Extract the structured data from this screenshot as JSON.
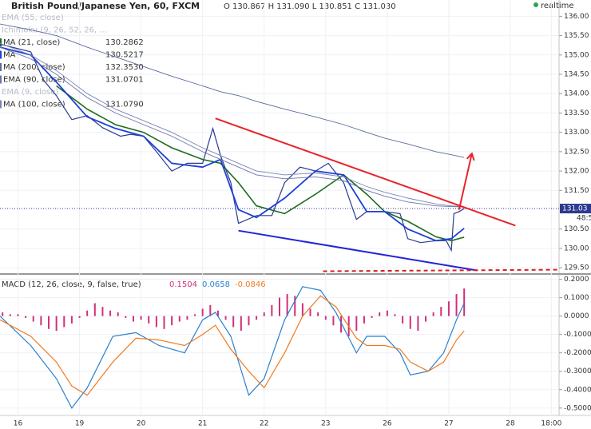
{
  "chart_data": [
    {
      "type": "line",
      "title": "British Pound/Japanese Yen, 60, FXCM",
      "ohlc": "O 130.867 H 131.090 L 130.851 C 131.030",
      "status": "realtime",
      "hidden_indicators": [
        "EMA (55, close)",
        "Ichimoku (9, 26, 52, 26, ..."
      ],
      "hidden_indicators_lower": [
        "EMA (9, close)"
      ],
      "xlim": [
        0,
        218
      ],
      "xticks": [
        {
          "value": 7,
          "label": "16"
        },
        {
          "value": 31,
          "label": "19"
        },
        {
          "value": 55,
          "label": "20"
        },
        {
          "value": 79,
          "label": "21"
        },
        {
          "value": 103,
          "label": "22"
        },
        {
          "value": 127,
          "label": "23"
        },
        {
          "value": 151,
          "label": "26"
        },
        {
          "value": 175,
          "label": "27"
        },
        {
          "value": 199,
          "label": "28"
        },
        {
          "value": 215,
          "label": "18:00"
        }
      ],
      "ylim": [
        129.4,
        136.4
      ],
      "yticks": [
        {
          "value": 129.5,
          "label": "129.50"
        },
        {
          "value": 130,
          "label": "130.00"
        },
        {
          "value": 130.5,
          "label": "130.50"
        },
        {
          "value": 131.5,
          "label": "131.50"
        },
        {
          "value": 132,
          "label": "132.00"
        },
        {
          "value": 132.5,
          "label": "132.50"
        },
        {
          "value": 133,
          "label": "133.00"
        },
        {
          "value": 133.5,
          "label": "133.50"
        },
        {
          "value": 134,
          "label": "134.00"
        },
        {
          "value": 134.5,
          "label": "134.50"
        },
        {
          "value": 135,
          "label": "135.00"
        },
        {
          "value": 135.5,
          "label": "135.50"
        },
        {
          "value": 136,
          "label": "136.00"
        }
      ],
      "grid": true,
      "last_price": 131.03,
      "countdown": "48:5",
      "series": [
        {
          "color": "#2b3a8f",
          "width": 1.2,
          "x": [
            0,
            6,
            12,
            17,
            22,
            28,
            34,
            40,
            47,
            51,
            56,
            61,
            67,
            73,
            79,
            83,
            86,
            90,
            93,
            100,
            106,
            111,
            117,
            123,
            128,
            134,
            139,
            143,
            150,
            156,
            159,
            164,
            170,
            174,
            176,
            177,
            179,
            181
          ],
          "values": [
            135.28,
            135.18,
            135.08,
            134.35,
            133.95,
            133.33,
            133.43,
            133.12,
            132.9,
            132.95,
            132.9,
            132.5,
            132.0,
            132.2,
            132.2,
            133.1,
            132.4,
            131.7,
            130.65,
            130.85,
            130.85,
            131.7,
            132.1,
            132.0,
            132.2,
            131.7,
            130.75,
            130.95,
            130.95,
            130.9,
            130.25,
            130.15,
            130.2,
            130.2,
            129.95,
            130.9,
            130.95,
            131.03
          ]
        },
        {
          "name": "MA (21, close)",
          "legend_value": "130.2862",
          "color": "#1e6b1e",
          "width": 1.6,
          "x": [
            0,
            12,
            22,
            34,
            45,
            56,
            67,
            79,
            86,
            93,
            100,
            111,
            123,
            134,
            143,
            150,
            159,
            170,
            176,
            181
          ],
          "values": [
            null,
            null,
            134.2,
            133.6,
            133.2,
            133.0,
            132.6,
            132.3,
            132.2,
            131.7,
            131.1,
            130.9,
            131.4,
            131.9,
            131.4,
            130.95,
            130.7,
            130.3,
            130.2,
            130.29
          ]
        },
        {
          "name": "MA",
          "legend_value": "130.5217",
          "color": "#1c3fd6",
          "width": 1.8,
          "x": [
            0,
            12,
            22,
            34,
            45,
            56,
            67,
            79,
            86,
            93,
            100,
            111,
            123,
            134,
            143,
            150,
            159,
            170,
            176,
            181
          ],
          "values": [
            135.2,
            135.0,
            134.3,
            133.4,
            133.1,
            132.9,
            132.2,
            132.1,
            132.3,
            131.0,
            130.8,
            131.3,
            132.0,
            131.9,
            130.95,
            130.95,
            130.5,
            130.2,
            130.25,
            130.52
          ]
        },
        {
          "name": "MA (200, close)",
          "legend_value": "132.3530",
          "color": "#5a6a9a",
          "width": 0.9,
          "x": [
            0,
            12,
            22,
            34,
            45,
            56,
            67,
            79,
            86,
            93,
            100,
            111,
            123,
            134,
            143,
            150,
            159,
            170,
            176,
            181
          ],
          "values": [
            135.8,
            135.65,
            135.5,
            135.2,
            134.95,
            134.7,
            134.45,
            134.2,
            134.05,
            133.95,
            133.8,
            133.6,
            133.4,
            133.2,
            133.0,
            132.85,
            132.7,
            132.5,
            132.42,
            132.35
          ]
        },
        {
          "name": "EMA (90, close)",
          "legend_value": "131.0701",
          "color": "#6a74a8",
          "width": 0.9,
          "x": [
            0,
            12,
            22,
            34,
            45,
            56,
            67,
            79,
            86,
            93,
            100,
            111,
            123,
            134,
            143,
            150,
            159,
            170,
            176,
            181
          ],
          "values": [
            135.2,
            134.9,
            134.5,
            133.9,
            133.5,
            133.2,
            132.9,
            132.5,
            132.3,
            132.1,
            131.9,
            131.8,
            131.85,
            131.75,
            131.5,
            131.35,
            131.2,
            131.1,
            131.08,
            131.07
          ]
        },
        {
          "name": "MA (100, close)",
          "legend_value": "131.0790",
          "color": "#7c84b4",
          "width": 0.9,
          "x": [
            0,
            12,
            22,
            34,
            45,
            56,
            67,
            79,
            86,
            93,
            100,
            111,
            123,
            134,
            143,
            150,
            159,
            170,
            176,
            181
          ],
          "values": [
            135.3,
            135.0,
            134.6,
            134.0,
            133.6,
            133.3,
            133.0,
            132.6,
            132.4,
            132.2,
            132.0,
            131.9,
            131.95,
            131.85,
            131.6,
            131.45,
            131.3,
            131.15,
            131.1,
            131.08
          ]
        }
      ],
      "drawings": [
        {
          "color": "#e8232a",
          "x": [
            84,
            201
          ],
          "values": [
            133.36,
            130.59
          ]
        },
        {
          "color": "#2323d9",
          "x": [
            93,
            186
          ],
          "values": [
            130.46,
            129.43
          ]
        },
        {
          "color": "#d62020",
          "dashed": true,
          "x": [
            126,
            218
          ],
          "values": [
            129.41,
            129.45
          ]
        },
        {
          "color": "#e8232a",
          "arrow": true,
          "x": [
            179,
            184
          ],
          "values": [
            131.0,
            132.45
          ]
        }
      ]
    },
    {
      "type": "macd",
      "legend": "MACD (12, 26, close, 9, false, true)",
      "legend_values": [
        {
          "value": 0.1504,
          "color": "#d0307a"
        },
        {
          "value": 0.0658,
          "color": "#2a7fd0"
        },
        {
          "value": -0.0846,
          "color": "#f07a20"
        }
      ],
      "xlim": [
        0,
        218
      ],
      "ylim": [
        -0.54,
        0.22
      ],
      "yticks": [
        {
          "value": -0.5,
          "label": "-0.5000"
        },
        {
          "value": -0.4,
          "label": "-0.4000"
        },
        {
          "value": -0.3,
          "label": "-0.3000"
        },
        {
          "value": -0.2,
          "label": "-0.2000"
        },
        {
          "value": -0.1,
          "label": "-0.1000"
        },
        {
          "value": 0,
          "label": "0.0000"
        },
        {
          "value": 0.1,
          "label": "0.1000"
        },
        {
          "value": 0.2,
          "label": "0.2000"
        }
      ],
      "histogram": {
        "color": "#d0307a",
        "x": [
          1,
          4,
          7,
          10,
          13,
          16,
          19,
          22,
          25,
          28,
          31,
          34,
          37,
          40,
          43,
          46,
          49,
          52,
          55,
          58,
          61,
          64,
          67,
          70,
          73,
          76,
          79,
          82,
          85,
          88,
          91,
          94,
          97,
          100,
          103,
          106,
          109,
          112,
          115,
          118,
          121,
          124,
          127,
          130,
          133,
          136,
          139,
          142,
          145,
          148,
          151,
          154,
          157,
          160,
          163,
          166,
          169,
          172,
          175,
          178,
          181
        ],
        "values": [
          0.02,
          0.01,
          0.01,
          -0.01,
          -0.03,
          -0.05,
          -0.07,
          -0.08,
          -0.06,
          -0.04,
          -0.01,
          0.03,
          0.07,
          0.05,
          0.03,
          0.02,
          -0.01,
          -0.03,
          -0.02,
          -0.04,
          -0.06,
          -0.07,
          -0.05,
          -0.03,
          -0.02,
          0.01,
          0.04,
          0.06,
          0.03,
          -0.02,
          -0.06,
          -0.08,
          -0.05,
          -0.02,
          0.02,
          0.06,
          0.1,
          0.12,
          0.11,
          0.07,
          0.04,
          0.02,
          -0.02,
          -0.05,
          -0.09,
          -0.11,
          -0.08,
          -0.04,
          -0.01,
          0.02,
          0.03,
          0.01,
          -0.04,
          -0.07,
          -0.08,
          -0.03,
          0.02,
          0.05,
          0.08,
          0.12,
          0.15
        ]
      },
      "series": [
        {
          "color": "#2a7fd0",
          "x": [
            0,
            12,
            22,
            28,
            34,
            44,
            53,
            62,
            72,
            79,
            84,
            90,
            97,
            103,
            111,
            118,
            125,
            131,
            139,
            143,
            150,
            156,
            160,
            167,
            173,
            178,
            181
          ],
          "values": [
            0,
            -0.16,
            -0.34,
            -0.5,
            -0.39,
            -0.11,
            -0.09,
            -0.16,
            -0.2,
            -0.02,
            0.02,
            -0.11,
            -0.43,
            -0.34,
            -0.02,
            0.16,
            0.14,
            0.02,
            -0.2,
            -0.11,
            -0.11,
            -0.2,
            -0.32,
            -0.3,
            -0.2,
            -0.02,
            0.07
          ]
        },
        {
          "color": "#f07a20",
          "x": [
            0,
            12,
            22,
            28,
            34,
            44,
            53,
            62,
            72,
            79,
            84,
            90,
            97,
            103,
            111,
            118,
            125,
            131,
            139,
            143,
            150,
            156,
            160,
            167,
            173,
            178,
            181
          ],
          "values": [
            -0.02,
            -0.11,
            -0.25,
            -0.38,
            -0.43,
            -0.25,
            -0.12,
            -0.13,
            -0.16,
            -0.1,
            -0.05,
            -0.18,
            -0.3,
            -0.39,
            -0.2,
            0.0,
            0.11,
            0.05,
            -0.12,
            -0.16,
            -0.16,
            -0.18,
            -0.25,
            -0.3,
            -0.25,
            -0.13,
            -0.08
          ]
        }
      ]
    }
  ]
}
